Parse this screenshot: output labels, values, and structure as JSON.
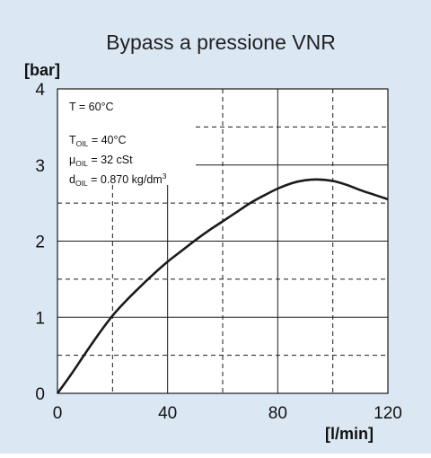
{
  "colors": {
    "background": "#dbe8f4",
    "plot_area": "#ffffff",
    "curve": "#1a1a1a",
    "grid": "#1a1a1a"
  },
  "chart_data": {
    "type": "line",
    "title": "Bypass a pressione VNR",
    "xlabel": "[l/min]",
    "ylabel": "[bar]",
    "xlim": [
      0,
      120
    ],
    "ylim": [
      0,
      4
    ],
    "x_ticks": [
      0,
      40,
      80,
      120
    ],
    "y_ticks": [
      0,
      1,
      2,
      3,
      4
    ],
    "grid": "solid at labeled ticks, dashed at midpoints",
    "series": [
      {
        "x": [
          0,
          5,
          10,
          15,
          20,
          25,
          30,
          35,
          40,
          45,
          50,
          55,
          60,
          65,
          70,
          75,
          80,
          85,
          90,
          95,
          100,
          105,
          110,
          115,
          120
        ],
        "y": [
          0,
          0.25,
          0.52,
          0.78,
          1.02,
          1.22,
          1.4,
          1.57,
          1.73,
          1.87,
          2.01,
          2.14,
          2.26,
          2.38,
          2.5,
          2.6,
          2.69,
          2.76,
          2.8,
          2.81,
          2.79,
          2.74,
          2.67,
          2.61,
          2.55
        ]
      }
    ],
    "annotations": [
      {
        "base": "T = 60°C",
        "sub": "",
        "rest": "",
        "sup": ""
      },
      {
        "base": "T",
        "sub": "OIL",
        "rest": " = 40°C",
        "sup": ""
      },
      {
        "base": "μ",
        "sub": "OIL",
        "rest": " = 32 cSt",
        "sup": ""
      },
      {
        "base": "d",
        "sub": "OIL",
        "rest": " = 0.870 kg/dm",
        "sup": "3"
      }
    ]
  }
}
